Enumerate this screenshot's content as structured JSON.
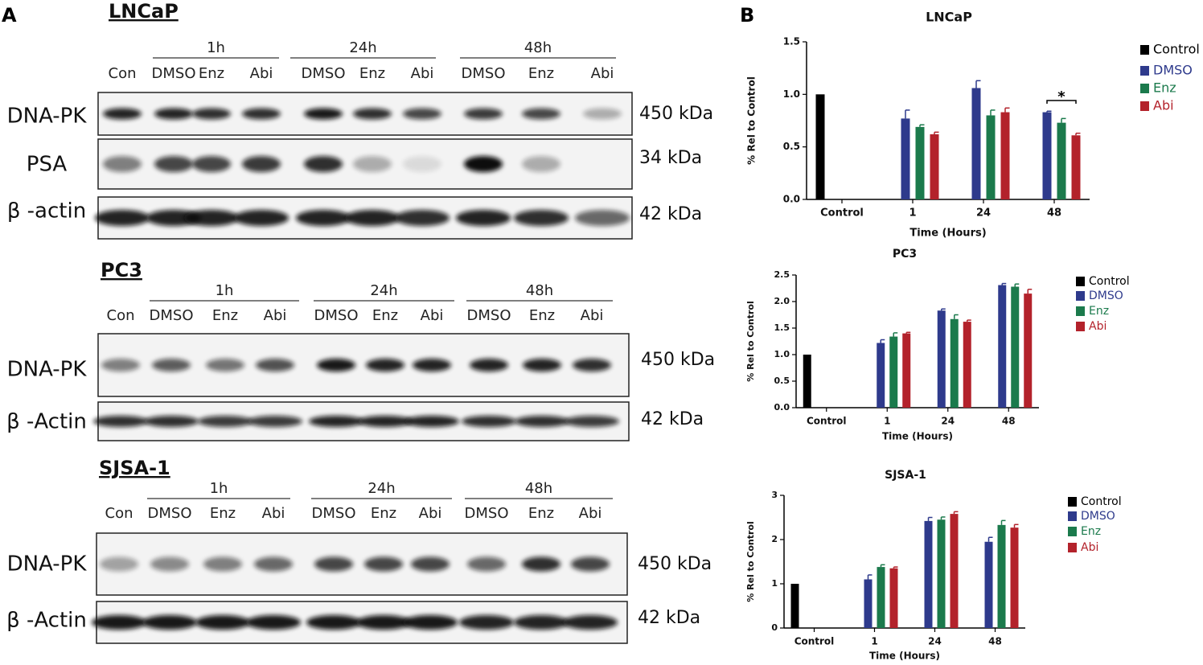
{
  "panel_a": {
    "label": "A",
    "blots": [
      {
        "title": "LNCaP",
        "groups": [
          "1h",
          "24h",
          "48h"
        ],
        "lanes": [
          "Con",
          "DMSO",
          "Enz",
          "Abi",
          "DMSO",
          "Enz",
          "Abi",
          "DMSO",
          "Enz",
          "Abi"
        ],
        "rows": [
          {
            "protein": "DNA-PK",
            "kda": "450 kDa"
          },
          {
            "protein": "PSA",
            "kda": "34 kDa"
          },
          {
            "protein": "β -actin",
            "kda": "42 kDa"
          }
        ]
      },
      {
        "title": "PC3",
        "groups": [
          "1h",
          "24h",
          "48h"
        ],
        "lanes": [
          "Con",
          "DMSO",
          "Enz",
          "Abi",
          "DMSO",
          "Enz",
          "Abi",
          "DMSO",
          "Enz",
          "Abi"
        ],
        "rows": [
          {
            "protein": "DNA-PK",
            "kda": "450 kDa"
          },
          {
            "protein": "β -Actin",
            "kda": "42 kDa"
          }
        ]
      },
      {
        "title": "SJSA-1",
        "groups": [
          "1h",
          "24h",
          "48h"
        ],
        "lanes": [
          "Con",
          "DMSO",
          "Enz",
          "Abi",
          "DMSO",
          "Enz",
          "Abi",
          "DMSO",
          "Enz",
          "Abi"
        ],
        "rows": [
          {
            "protein": "DNA-PK",
            "kda": "450 kDa"
          },
          {
            "protein": "β -Actin",
            "kda": "42 kDa"
          }
        ]
      }
    ]
  },
  "panel_b": {
    "label": "B"
  },
  "chart_data": [
    {
      "type": "bar",
      "title": "LNCaP",
      "x_label": "Time (Hours)",
      "y_label": "% Rel to Control",
      "annotation": "*",
      "categories": [
        "Control",
        "1",
        "24",
        "48"
      ],
      "ylim": [
        0,
        1.5
      ],
      "yticks": [
        {
          "value": 0,
          "label": "0.0"
        },
        {
          "value": 0.5,
          "label": "0.5"
        },
        {
          "value": 1,
          "label": "1.0"
        },
        {
          "value": 1.5,
          "label": "1.5"
        }
      ],
      "series": [
        {
          "name": "Control",
          "color": "#000000",
          "values": [
            1.0,
            null,
            null,
            null
          ]
        },
        {
          "name": "DMSO",
          "color": "#2e3a8c",
          "values": [
            null,
            0.77,
            1.06,
            0.83
          ],
          "errors": [
            null,
            0.08,
            0.07,
            0.01
          ]
        },
        {
          "name": "Enz",
          "color": "#1b7a4c",
          "values": [
            null,
            0.69,
            0.8,
            0.73
          ],
          "errors": [
            null,
            0.02,
            0.05,
            0.04
          ]
        },
        {
          "name": "Abi",
          "color": "#b3222b",
          "values": [
            null,
            0.62,
            0.83,
            0.61
          ],
          "errors": [
            null,
            0.02,
            0.04,
            0.02
          ]
        }
      ]
    },
    {
      "type": "bar",
      "title": "PC3",
      "x_label": "Time (Hours)",
      "y_label": "% Rel to Control",
      "categories": [
        "Control",
        "1",
        "24",
        "48"
      ],
      "ylim": [
        0,
        2.5
      ],
      "yticks": [
        {
          "value": 0,
          "label": "0.0"
        },
        {
          "value": 0.5,
          "label": "0.5"
        },
        {
          "value": 1,
          "label": "1.0"
        },
        {
          "value": 1.5,
          "label": "1.5"
        },
        {
          "value": 2,
          "label": "2.0"
        },
        {
          "value": 2.5,
          "label": "2.5"
        }
      ],
      "series": [
        {
          "name": "Control",
          "color": "#000000",
          "values": [
            1.0,
            null,
            null,
            null
          ]
        },
        {
          "name": "DMSO",
          "color": "#2e3a8c",
          "values": [
            null,
            1.22,
            1.83,
            2.31
          ],
          "errors": [
            null,
            0.06,
            0.03,
            0.03
          ]
        },
        {
          "name": "Enz",
          "color": "#1b7a4c",
          "values": [
            null,
            1.34,
            1.67,
            2.28
          ],
          "errors": [
            null,
            0.07,
            0.08,
            0.05
          ]
        },
        {
          "name": "Abi",
          "color": "#b3222b",
          "values": [
            null,
            1.4,
            1.62,
            2.15
          ],
          "errors": [
            null,
            0.02,
            0.03,
            0.08
          ]
        }
      ]
    },
    {
      "type": "bar",
      "title": "SJSA-1",
      "x_label": "Time (Hours)",
      "y_label": "% Rel to Control",
      "categories": [
        "Control",
        "1",
        "24",
        "48"
      ],
      "ylim": [
        0,
        3
      ],
      "yticks": [
        0,
        1,
        2,
        3
      ],
      "series": [
        {
          "name": "Control",
          "color": "#000000",
          "values": [
            1.0,
            null,
            null,
            null
          ]
        },
        {
          "name": "DMSO",
          "color": "#2e3a8c",
          "values": [
            null,
            1.1,
            2.42,
            1.95
          ],
          "errors": [
            null,
            0.1,
            0.08,
            0.1
          ]
        },
        {
          "name": "Enz",
          "color": "#1b7a4c",
          "values": [
            null,
            1.38,
            2.45,
            2.33
          ],
          "errors": [
            null,
            0.05,
            0.06,
            0.1
          ]
        },
        {
          "name": "Abi",
          "color": "#b3222b",
          "values": [
            null,
            1.35,
            2.58,
            2.27
          ],
          "errors": [
            null,
            0.03,
            0.05,
            0.07
          ]
        }
      ]
    }
  ]
}
